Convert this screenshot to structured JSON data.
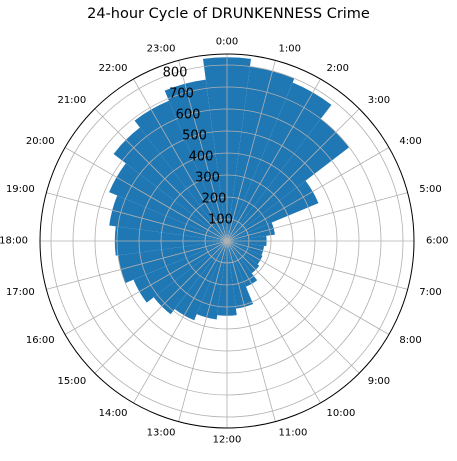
{
  "chart_data": {
    "type": "bar",
    "title": "24-hour Cycle of DRUNKENNESS Crime",
    "polar": true,
    "theta_zero_location": "top",
    "theta_direction": "clockwise",
    "categories": [
      "0:00",
      "1:00",
      "2:00",
      "3:00",
      "4:00",
      "5:00",
      "6:00",
      "7:00",
      "8:00",
      "9:00",
      "10:00",
      "11:00",
      "12:00",
      "13:00",
      "14:00",
      "15:00",
      "16:00",
      "17:00",
      "18:00",
      "19:00",
      "20:00",
      "21:00",
      "22:00",
      "23:00"
    ],
    "values": [
      835,
      800,
      780,
      700,
      450,
      220,
      180,
      170,
      175,
      185,
      225,
      310,
      340,
      360,
      390,
      420,
      460,
      500,
      510,
      540,
      580,
      650,
      690,
      740
    ],
    "radial_ticks": [
      "100",
      "200",
      "300",
      "400",
      "500",
      "600",
      "700",
      "800"
    ],
    "rlim": [
      0,
      850
    ],
    "grid": true,
    "bar_color": "#1f77b4"
  }
}
